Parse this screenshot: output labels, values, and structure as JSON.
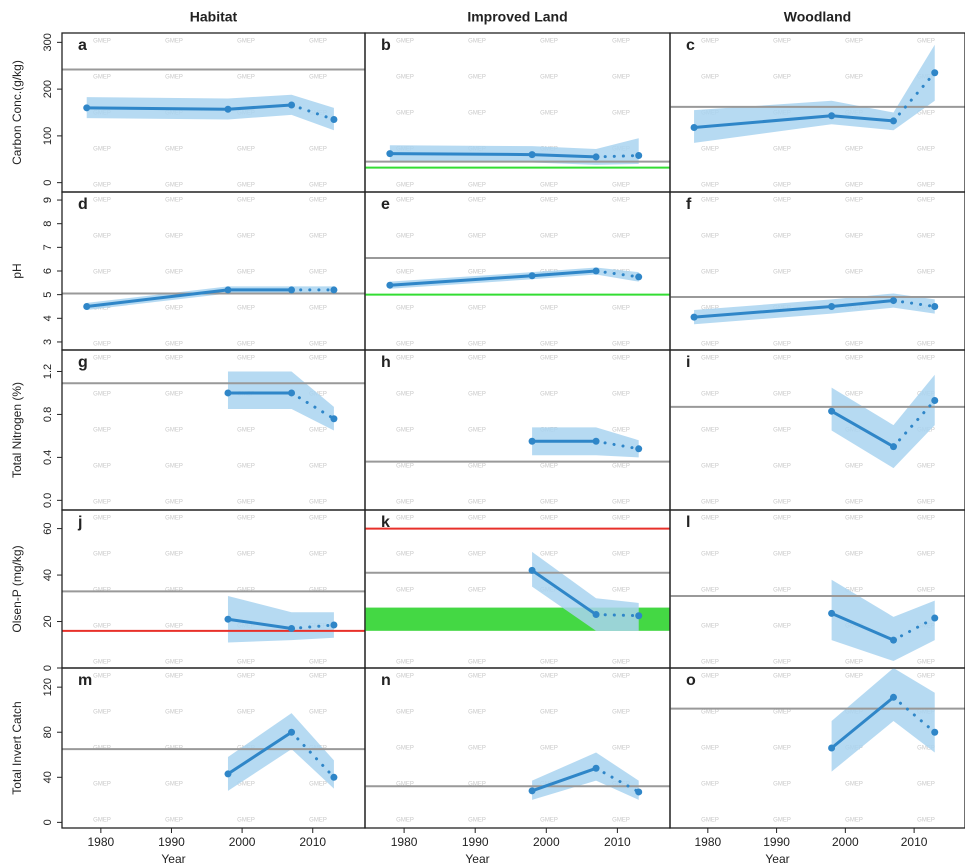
{
  "chart_data": [
    {
      "type": "line",
      "label": "a",
      "title": "Habitat",
      "ylabel": "Carbon Conc.(g/kg)",
      "x": [
        1978,
        1998,
        2007,
        2013
      ],
      "values": [
        160,
        157,
        166,
        135
      ],
      "lower": [
        138,
        135,
        145,
        112
      ],
      "upper": [
        183,
        180,
        188,
        160
      ],
      "color": "#2f86c8",
      "band_color": "#a9d3f0",
      "xlim": [
        1974.5,
        2017.4
      ],
      "ylim": [
        -20,
        320
      ],
      "yticks": [
        0,
        100,
        200,
        300
      ],
      "reference_lines": [
        {
          "value": 242,
          "color": "#999999"
        }
      ],
      "watermark": "GMEP"
    },
    {
      "type": "line",
      "label": "b",
      "title": "Improved Land",
      "x": [
        1978,
        1998,
        2007,
        2013
      ],
      "values": [
        62,
        60,
        55,
        58
      ],
      "lower": [
        45,
        43,
        38,
        40
      ],
      "upper": [
        80,
        78,
        72,
        95
      ],
      "color": "#2f86c8",
      "band_color": "#a9d3f0",
      "xlim": [
        1974.5,
        2017.4
      ],
      "ylim": [
        -20,
        320
      ],
      "reference_lines": [
        {
          "value": 45,
          "color": "#999999"
        },
        {
          "value": 32,
          "color": "#33dd33"
        }
      ],
      "watermark": "GMEP"
    },
    {
      "type": "line",
      "label": "c",
      "title": "Woodland",
      "x": [
        1978,
        1998,
        2007,
        2013
      ],
      "values": [
        118,
        143,
        132,
        235
      ],
      "lower": [
        85,
        125,
        112,
        175
      ],
      "upper": [
        155,
        175,
        150,
        295
      ],
      "color": "#2f86c8",
      "band_color": "#a9d3f0",
      "xlim": [
        1974.5,
        2017.4
      ],
      "ylim": [
        -20,
        320
      ],
      "reference_lines": [
        {
          "value": 162,
          "color": "#999999"
        }
      ],
      "watermark": "GMEP"
    },
    {
      "type": "line",
      "label": "d",
      "ylabel": "pH",
      "x": [
        1978,
        1998,
        2007,
        2013
      ],
      "values": [
        4.5,
        5.2,
        5.2,
        5.2
      ],
      "lower": [
        4.35,
        5.05,
        5.05,
        5.05
      ],
      "upper": [
        4.65,
        5.35,
        5.35,
        5.35
      ],
      "color": "#2f86c8",
      "band_color": "#a9d3f0",
      "xlim": [
        1974.5,
        2017.4
      ],
      "ylim": [
        2.66,
        9.34
      ],
      "yticks": [
        3,
        4,
        5,
        6,
        7,
        8,
        9
      ],
      "reference_lines": [
        {
          "value": 5.05,
          "color": "#999999"
        }
      ],
      "watermark": "GMEP"
    },
    {
      "type": "line",
      "label": "e",
      "x": [
        1978,
        1998,
        2007,
        2013
      ],
      "values": [
        5.4,
        5.8,
        6.0,
        5.75
      ],
      "lower": [
        5.25,
        5.65,
        5.85,
        5.55
      ],
      "upper": [
        5.55,
        5.95,
        6.15,
        5.95
      ],
      "color": "#2f86c8",
      "band_color": "#a9d3f0",
      "xlim": [
        1974.5,
        2017.4
      ],
      "ylim": [
        2.66,
        9.34
      ],
      "reference_lines": [
        {
          "value": 6.55,
          "color": "#999999"
        },
        {
          "value": 5.0,
          "color": "#33dd33"
        }
      ],
      "watermark": "GMEP"
    },
    {
      "type": "line",
      "label": "f",
      "x": [
        1978,
        1998,
        2007,
        2013
      ],
      "values": [
        4.05,
        4.5,
        4.75,
        4.5
      ],
      "lower": [
        3.75,
        4.2,
        4.45,
        4.2
      ],
      "upper": [
        4.35,
        4.8,
        5.05,
        4.8
      ],
      "color": "#2f86c8",
      "band_color": "#a9d3f0",
      "xlim": [
        1974.5,
        2017.4
      ],
      "ylim": [
        2.66,
        9.34
      ],
      "reference_lines": [
        {
          "value": 4.9,
          "color": "#999999"
        }
      ],
      "watermark": "GMEP"
    },
    {
      "type": "line",
      "label": "g",
      "ylabel": "Total Nitrogen (%)",
      "x": [
        1978,
        1998,
        2007,
        2013
      ],
      "values": [
        null,
        1.0,
        1.0,
        0.76
      ],
      "lower": [
        null,
        0.85,
        0.85,
        0.65
      ],
      "upper": [
        null,
        1.2,
        1.2,
        0.87
      ],
      "color": "#2f86c8",
      "band_color": "#a9d3f0",
      "xlim": [
        1974.5,
        2017.4
      ],
      "ylim": [
        -0.09,
        1.4
      ],
      "yticks": [
        {
          "value": 0,
          "label": "0.0"
        },
        0.4,
        0.8,
        1.2
      ],
      "reference_lines": [
        {
          "value": 1.09,
          "color": "#999999"
        }
      ],
      "watermark": "GMEP"
    },
    {
      "type": "line",
      "label": "h",
      "x": [
        1978,
        1998,
        2007,
        2013
      ],
      "values": [
        null,
        0.55,
        0.55,
        0.48
      ],
      "lower": [
        null,
        0.42,
        0.42,
        0.4
      ],
      "upper": [
        null,
        0.68,
        0.68,
        0.56
      ],
      "color": "#2f86c8",
      "band_color": "#a9d3f0",
      "xlim": [
        1974.5,
        2017.4
      ],
      "ylim": [
        -0.09,
        1.4
      ],
      "reference_lines": [
        {
          "value": 0.36,
          "color": "#999999"
        }
      ],
      "watermark": "GMEP"
    },
    {
      "type": "line",
      "label": "i",
      "x": [
        1978,
        1998,
        2007,
        2013
      ],
      "values": [
        null,
        0.83,
        0.5,
        0.93
      ],
      "lower": [
        null,
        0.65,
        0.3,
        0.7
      ],
      "upper": [
        null,
        1.05,
        0.7,
        1.17
      ],
      "color": "#2f86c8",
      "band_color": "#a9d3f0",
      "xlim": [
        1974.5,
        2017.4
      ],
      "ylim": [
        -0.09,
        1.4
      ],
      "reference_lines": [
        {
          "value": 0.87,
          "color": "#999999"
        }
      ],
      "watermark": "GMEP"
    },
    {
      "type": "line",
      "label": "j",
      "ylabel": "Olsen-P (mg/kg)",
      "x": [
        1978,
        1998,
        2007,
        2013
      ],
      "values": [
        null,
        21,
        17,
        18.5
      ],
      "lower": [
        null,
        11,
        12,
        13
      ],
      "upper": [
        null,
        31,
        24,
        24
      ],
      "color": "#2f86c8",
      "band_color": "#a9d3f0",
      "xlim": [
        1974.5,
        2017.4
      ],
      "ylim": [
        0,
        68
      ],
      "yticks": [
        0,
        20,
        40,
        60
      ],
      "reference_lines": [
        {
          "value": 33,
          "color": "#999999"
        },
        {
          "value": 16,
          "color": "#e8302a"
        }
      ],
      "watermark": "GMEP"
    },
    {
      "type": "line",
      "label": "k",
      "x": [
        1978,
        1998,
        2007,
        2013
      ],
      "values": [
        null,
        42,
        23,
        22.5
      ],
      "lower": [
        null,
        35,
        16,
        16
      ],
      "upper": [
        null,
        50,
        30,
        28
      ],
      "color": "#2f86c8",
      "band_color": "#a9d3f0",
      "xlim": [
        1974.5,
        2017.4
      ],
      "ylim": [
        0,
        68
      ],
      "reference_lines": [
        {
          "value": 41,
          "color": "#999999"
        },
        {
          "value": 60,
          "color": "#e8302a"
        }
      ],
      "reference_band": {
        "range": [
          16,
          26
        ],
        "color": "#44d844"
      },
      "watermark": "GMEP"
    },
    {
      "type": "line",
      "label": "l",
      "x": [
        1978,
        1998,
        2007,
        2013
      ],
      "values": [
        null,
        23.5,
        12,
        21.5
      ],
      "lower": [
        null,
        12,
        3,
        12
      ],
      "upper": [
        null,
        38,
        22,
        29
      ],
      "color": "#2f86c8",
      "band_color": "#a9d3f0",
      "xlim": [
        1974.5,
        2017.4
      ],
      "ylim": [
        0,
        68
      ],
      "reference_lines": [
        {
          "value": 31,
          "color": "#999999"
        }
      ],
      "watermark": "GMEP"
    },
    {
      "type": "line",
      "label": "m",
      "ylabel": "Total Invert Catch",
      "xlabel": "Year",
      "x": [
        1978,
        1998,
        2007,
        2013
      ],
      "values": [
        null,
        43,
        80,
        40
      ],
      "lower": [
        null,
        28,
        65,
        30
      ],
      "upper": [
        null,
        58,
        97,
        55
      ],
      "color": "#2f86c8",
      "band_color": "#a9d3f0",
      "xlim": [
        1974.5,
        2017.4
      ],
      "ylim": [
        -5,
        137
      ],
      "yticks": [
        0,
        40,
        80,
        120
      ],
      "xticks": [
        1980,
        1990,
        2000,
        2010
      ],
      "reference_lines": [
        {
          "value": 65,
          "color": "#999999"
        }
      ],
      "watermark": "GMEP"
    },
    {
      "type": "line",
      "label": "n",
      "xlabel": "Year",
      "x": [
        1978,
        1998,
        2007,
        2013
      ],
      "values": [
        null,
        28,
        48,
        27
      ],
      "lower": [
        null,
        20,
        37,
        20
      ],
      "upper": [
        null,
        37,
        62,
        37
      ],
      "color": "#2f86c8",
      "band_color": "#a9d3f0",
      "xlim": [
        1974.5,
        2017.4
      ],
      "ylim": [
        -5,
        137
      ],
      "xticks": [
        1980,
        1990,
        2000,
        2010
      ],
      "reference_lines": [
        {
          "value": 32,
          "color": "#999999"
        }
      ],
      "watermark": "GMEP"
    },
    {
      "type": "line",
      "label": "o",
      "xlabel": "Year",
      "x": [
        1978,
        1998,
        2007,
        2013
      ],
      "values": [
        null,
        66,
        111,
        80
      ],
      "lower": [
        null,
        45,
        90,
        62
      ],
      "upper": [
        null,
        90,
        137,
        115
      ],
      "color": "#2f86c8",
      "band_color": "#a9d3f0",
      "xlim": [
        1974.5,
        2017.4
      ],
      "ylim": [
        -5,
        137
      ],
      "xticks": [
        1980,
        1990,
        2000,
        2010
      ],
      "reference_lines": [
        {
          "value": 101,
          "color": "#999999"
        }
      ],
      "watermark": "GMEP"
    }
  ]
}
